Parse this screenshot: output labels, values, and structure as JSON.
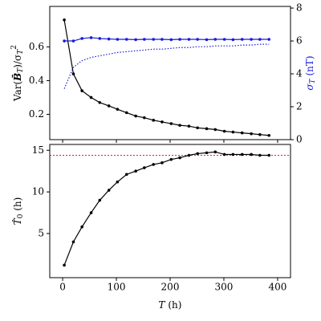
{
  "chart_data": [
    {
      "type": "line",
      "x": [
        3,
        20,
        36,
        53,
        69,
        86,
        102,
        119,
        136,
        152,
        169,
        185,
        202,
        218,
        235,
        251,
        268,
        284,
        301,
        317,
        334,
        351,
        367,
        384
      ],
      "series": [
        {
          "name": "Var",
          "color": "#000000",
          "markers": true,
          "dash": "solid",
          "values": [
            0.76,
            0.44,
            0.34,
            0.3,
            0.27,
            0.25,
            0.23,
            0.21,
            0.19,
            0.18,
            0.165,
            0.155,
            0.145,
            0.135,
            0.13,
            0.12,
            0.115,
            0.11,
            0.1,
            0.095,
            0.09,
            0.085,
            0.08,
            0.075
          ]
        },
        {
          "name": "sigma",
          "color": "#1a1adb",
          "markers": true,
          "dash": "solid",
          "axis": "y2",
          "values": [
            6.0,
            6.0,
            6.15,
            6.2,
            6.15,
            6.12,
            6.1,
            6.1,
            6.08,
            6.1,
            6.1,
            6.1,
            6.08,
            6.1,
            6.1,
            6.1,
            6.08,
            6.1,
            6.1,
            6.08,
            6.1,
            6.1,
            6.1,
            6.1
          ]
        },
        {
          "name": "sigma-dotted",
          "color": "#1a1adb",
          "markers": false,
          "dash": "dotted",
          "axis": "y2",
          "values": [
            3.1,
            4.4,
            4.8,
            5.0,
            5.1,
            5.2,
            5.3,
            5.35,
            5.4,
            5.45,
            5.5,
            5.5,
            5.55,
            5.6,
            5.6,
            5.65,
            5.65,
            5.7,
            5.7,
            5.7,
            5.75,
            5.75,
            5.8,
            5.8
          ]
        }
      ],
      "ylabel": [
        "Var(",
        "B̄",
        "T",
        ")/σ",
        "T",
        "2"
      ],
      "y2label": [
        "σ",
        "T",
        " (nT)"
      ],
      "xlim": [
        -24,
        424
      ],
      "xticks": [
        0,
        100,
        200,
        300,
        400
      ],
      "ylim": [
        0.05,
        0.84
      ],
      "yticks": [
        0.2,
        0.4,
        0.6
      ],
      "y2lim": [
        0,
        8.1
      ],
      "y2ticks": [
        0,
        2,
        4,
        6,
        8
      ]
    },
    {
      "type": "line",
      "x": [
        3,
        20,
        36,
        53,
        69,
        86,
        102,
        119,
        136,
        152,
        169,
        185,
        202,
        218,
        235,
        251,
        268,
        284,
        301,
        317,
        334,
        351,
        367,
        384
      ],
      "series": [
        {
          "name": "T0",
          "color": "#000000",
          "markers": true,
          "dash": "solid",
          "values": [
            1.2,
            4.0,
            5.8,
            7.5,
            9.0,
            10.2,
            11.2,
            12.1,
            12.5,
            12.9,
            13.3,
            13.5,
            13.9,
            14.1,
            14.4,
            14.6,
            14.7,
            14.8,
            14.5,
            14.5,
            14.5,
            14.5,
            14.4,
            14.4
          ]
        }
      ],
      "reference_line": {
        "value": 14.4,
        "color": "#d62728"
      },
      "xlabel": [
        "T",
        " (h)"
      ],
      "ylabel": [
        "T̂",
        "0",
        " (h)"
      ],
      "xlim": [
        -24,
        424
      ],
      "xticks": [
        0,
        100,
        200,
        300,
        400
      ],
      "ylim": [
        -0.3,
        15.7
      ],
      "yticks": [
        5,
        10,
        15
      ]
    }
  ]
}
